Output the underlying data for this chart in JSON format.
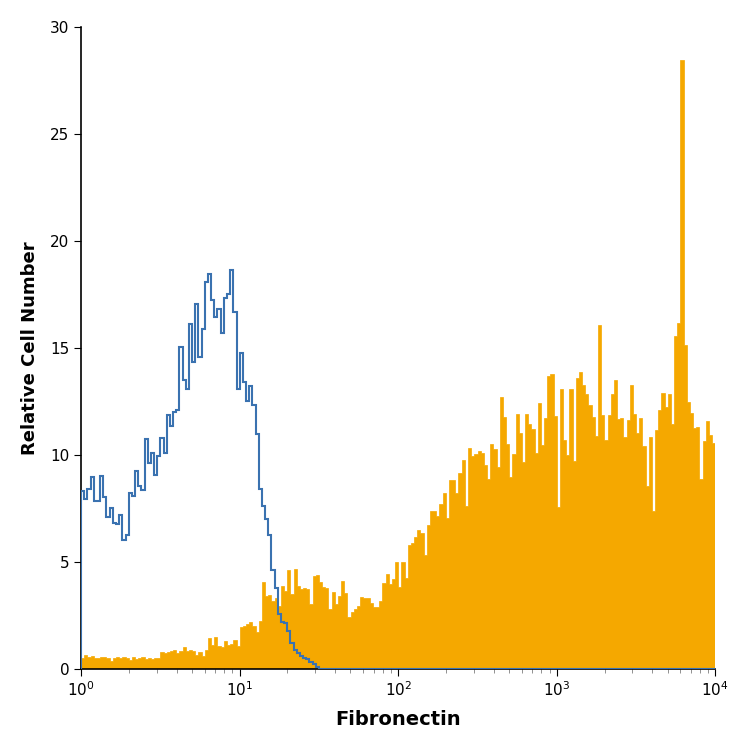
{
  "xlabel": "Fibronectin",
  "ylabel": "Relative Cell Number",
  "xlim_log": [
    1,
    10000
  ],
  "ylim": [
    0,
    30
  ],
  "yticks": [
    0,
    5,
    10,
    15,
    20,
    25,
    30
  ],
  "xlabel_fontsize": 14,
  "ylabel_fontsize": 13,
  "filled_color": "#F5A800",
  "open_color": "#3A72B0",
  "background_color": "#FFFFFF",
  "open_linewidth": 1.5,
  "num_bins": 200
}
